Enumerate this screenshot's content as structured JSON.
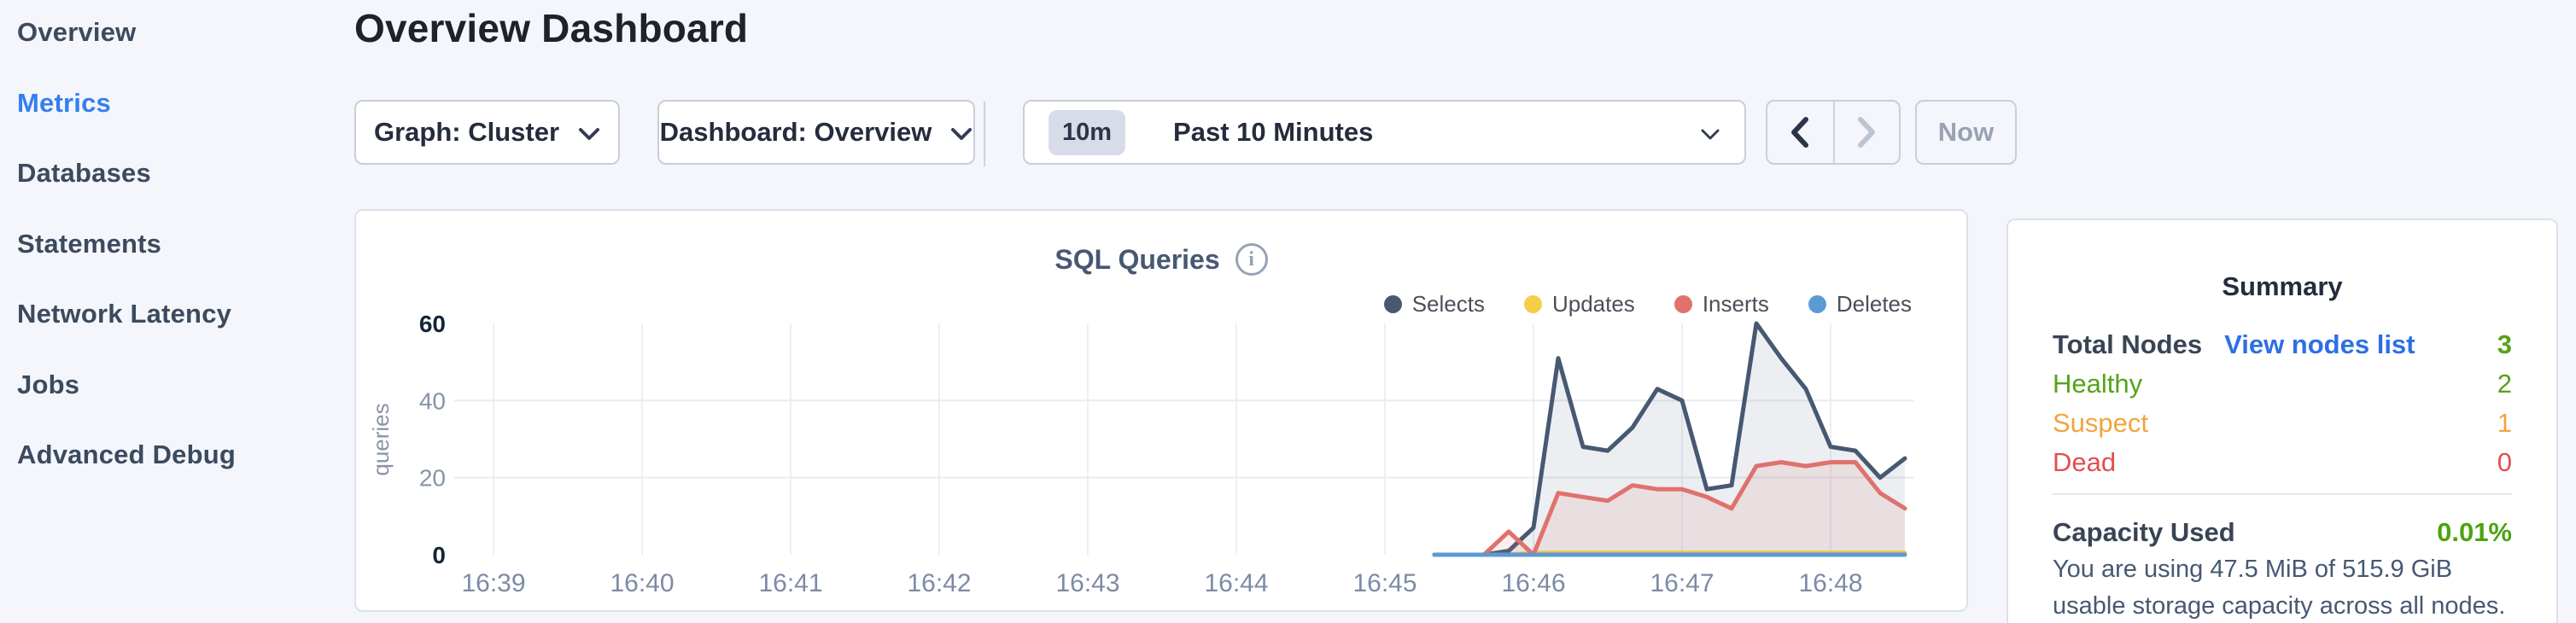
{
  "sidebar": {
    "items": [
      {
        "label": "Overview",
        "active": false
      },
      {
        "label": "Metrics",
        "active": true
      },
      {
        "label": "Databases",
        "active": false
      },
      {
        "label": "Statements",
        "active": false
      },
      {
        "label": "Network Latency",
        "active": false
      },
      {
        "label": "Jobs",
        "active": false
      },
      {
        "label": "Advanced Debug",
        "active": false
      }
    ],
    "active_color": "#337ff1"
  },
  "header": {
    "title": "Overview Dashboard"
  },
  "controls": {
    "graph_dropdown": {
      "label": "Graph: Cluster"
    },
    "dashboard_dropdown": {
      "label": "Dashboard: Overview"
    },
    "time_window": {
      "badge": "10m",
      "label": "Past 10 Minutes"
    },
    "now_label": "Now"
  },
  "chart_data": {
    "type": "area",
    "title": "SQL Queries",
    "ylabel": "queries",
    "x_ticks": [
      "16:39",
      "16:40",
      "16:41",
      "16:42",
      "16:43",
      "16:44",
      "16:45",
      "16:46",
      "16:47",
      "16:48"
    ],
    "y_ticks": [
      0,
      20,
      40,
      60
    ],
    "ylim": [
      0,
      60
    ],
    "grid": true,
    "legend_position": "top-right",
    "x_seconds_from_16_39": [
      380,
      390,
      400,
      410,
      420,
      430,
      440,
      450,
      460,
      470,
      480,
      490,
      500,
      510,
      520,
      530,
      540,
      550,
      560,
      570
    ],
    "series": [
      {
        "name": "Selects",
        "color": "#475872",
        "fill": "rgba(71,88,114,0.10)",
        "values": [
          0,
          0,
          0,
          1,
          7,
          51,
          28,
          27,
          33,
          43,
          40,
          17,
          18,
          60,
          51,
          43,
          28,
          27,
          20,
          25
        ]
      },
      {
        "name": "Updates",
        "color": "#f5cd47",
        "fill": "rgba(245,205,71,0.12)",
        "values": [
          0,
          0,
          0,
          0,
          0.5,
          0.5,
          0.5,
          0.5,
          0.5,
          0.5,
          0.5,
          0.5,
          0.5,
          0.5,
          0.5,
          0.5,
          0.5,
          0.5,
          0.5,
          0.5
        ]
      },
      {
        "name": "Inserts",
        "color": "#e0716c",
        "fill": "rgba(224,113,108,0.12)",
        "values": [
          0,
          0,
          0,
          6,
          0,
          16,
          15,
          14,
          18,
          17,
          17,
          15,
          12,
          23,
          24,
          23,
          24,
          24,
          16,
          12
        ]
      },
      {
        "name": "Deletes",
        "color": "#5b9bd3",
        "fill": "rgba(91,155,211,0.12)",
        "values": [
          0,
          0,
          0,
          0,
          0,
          0,
          0,
          0,
          0,
          0,
          0,
          0,
          0,
          0,
          0,
          0,
          0,
          0,
          0,
          0
        ]
      }
    ]
  },
  "summary": {
    "title": "Summary",
    "total_nodes_label": "Total Nodes",
    "view_nodes_link": "View nodes list",
    "total_nodes_value": "3",
    "total_nodes_color": "#55a317",
    "node_status_rows": [
      {
        "label": "Healthy",
        "value": "2",
        "color": "#55a317"
      },
      {
        "label": "Suspect",
        "value": "1",
        "color": "#f2a43d"
      },
      {
        "label": "Dead",
        "value": "0",
        "color": "#e14f4d"
      }
    ],
    "capacity_label": "Capacity Used",
    "capacity_value": "0.01%",
    "capacity_color": "#4da213",
    "capacity_note": "You are using 47.5 MiB of 515.9 GiB usable storage capacity across all nodes."
  }
}
